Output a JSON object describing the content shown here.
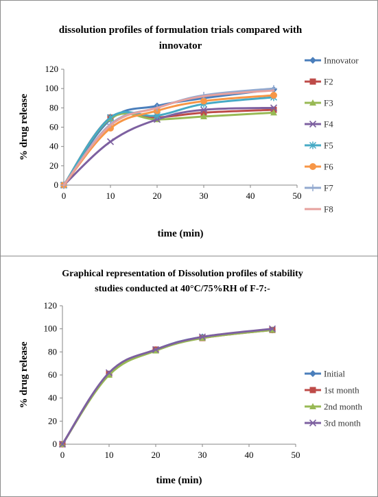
{
  "chart_data": [
    {
      "type": "line",
      "title": "dissolution profiles of formulation trials compared with innovator",
      "xlabel": "time (min)",
      "ylabel": "% drug release",
      "xlim": [
        0,
        50
      ],
      "ylim": [
        0,
        120
      ],
      "x_ticks": [
        "0",
        "10",
        "20",
        "30",
        "40",
        "50"
      ],
      "y_ticks": [
        "0",
        "20",
        "40",
        "60",
        "80",
        "100",
        "120"
      ],
      "legend_position": "right",
      "x": [
        0,
        10,
        20,
        30,
        45
      ],
      "series": [
        {
          "name": "Innovator",
          "color": "#4a7ebb",
          "marker": "diamond",
          "values": [
            0,
            68,
            82,
            90,
            99
          ]
        },
        {
          "name": "F2",
          "color": "#be4b48",
          "marker": "square",
          "values": [
            0,
            70,
            70,
            75,
            78
          ]
        },
        {
          "name": "F3",
          "color": "#98b954",
          "marker": "triangle",
          "values": [
            0,
            69,
            68,
            71,
            75
          ]
        },
        {
          "name": "F4",
          "color": "#7d60a0",
          "marker": "x",
          "values": [
            0,
            45,
            68,
            78,
            80
          ]
        },
        {
          "name": "F5",
          "color": "#46aac5",
          "marker": "star",
          "values": [
            0,
            70,
            72,
            84,
            91
          ]
        },
        {
          "name": "F6",
          "color": "#f79646",
          "marker": "circle",
          "values": [
            0,
            59,
            77,
            87,
            93
          ]
        },
        {
          "name": "F7",
          "color": "#92a9cf",
          "marker": "plus",
          "values": [
            0,
            63,
            80,
            93,
            100
          ]
        },
        {
          "name": "F8",
          "color": "#e6a19e",
          "marker": "none",
          "values": [
            0,
            62,
            80,
            92,
            98
          ]
        }
      ]
    },
    {
      "type": "line",
      "title": "Graphical representation of Dissolution profiles of stability studies conducted at 40°C/75%RH of F-7:-",
      "xlabel": "time (min)",
      "ylabel": "% drug release",
      "xlim": [
        0,
        50
      ],
      "ylim": [
        0,
        120
      ],
      "x_ticks": [
        "0",
        "10",
        "20",
        "30",
        "40",
        "50"
      ],
      "y_ticks": [
        "0",
        "20",
        "40",
        "60",
        "80",
        "100",
        "120"
      ],
      "legend_position": "right",
      "x": [
        0,
        10,
        20,
        30,
        45
      ],
      "series": [
        {
          "name": "Initial",
          "color": "#4a7ebb",
          "marker": "diamond",
          "values": [
            0,
            61,
            82,
            93,
            99
          ]
        },
        {
          "name": "1st month",
          "color": "#be4b48",
          "marker": "square",
          "values": [
            0,
            61,
            82,
            92,
            99
          ]
        },
        {
          "name": "2nd month",
          "color": "#98b954",
          "marker": "triangle",
          "values": [
            0,
            60,
            81,
            92,
            99
          ]
        },
        {
          "name": "3rd month",
          "color": "#7d60a0",
          "marker": "x",
          "values": [
            0,
            62,
            82,
            93,
            100
          ]
        }
      ]
    }
  ]
}
